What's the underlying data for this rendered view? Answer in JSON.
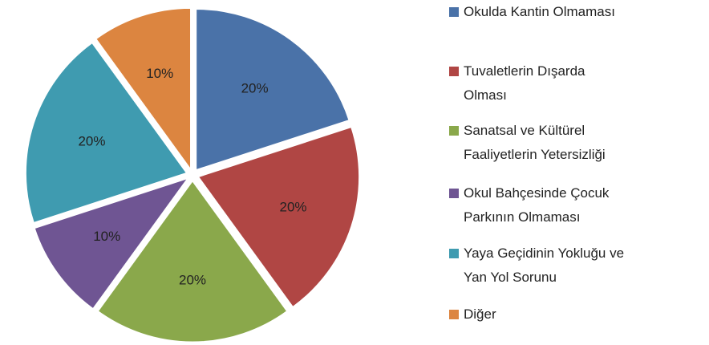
{
  "chart_data": {
    "type": "pie",
    "categories": [
      "Okulda Kantin Olmaması",
      "Tuvaletlerin Dışarda Olması",
      "Sanatsal ve Kültürel Faaliyetlerin Yetersizliği",
      "Okul Bahçesinde Çocuk Parkının Olmaması",
      "Yaya Geçidinin Yokluğu ve Yan Yol Sorunu",
      "Diğer"
    ],
    "values": [
      20,
      20,
      20,
      10,
      20,
      10
    ],
    "value_labels": [
      "20%",
      "20%",
      "20%",
      "10%",
      "20%",
      "10%"
    ],
    "colors": [
      "#4a72a8",
      "#b04644",
      "#8aa84b",
      "#6f5593",
      "#3f9bb0",
      "#dc8540"
    ]
  }
}
